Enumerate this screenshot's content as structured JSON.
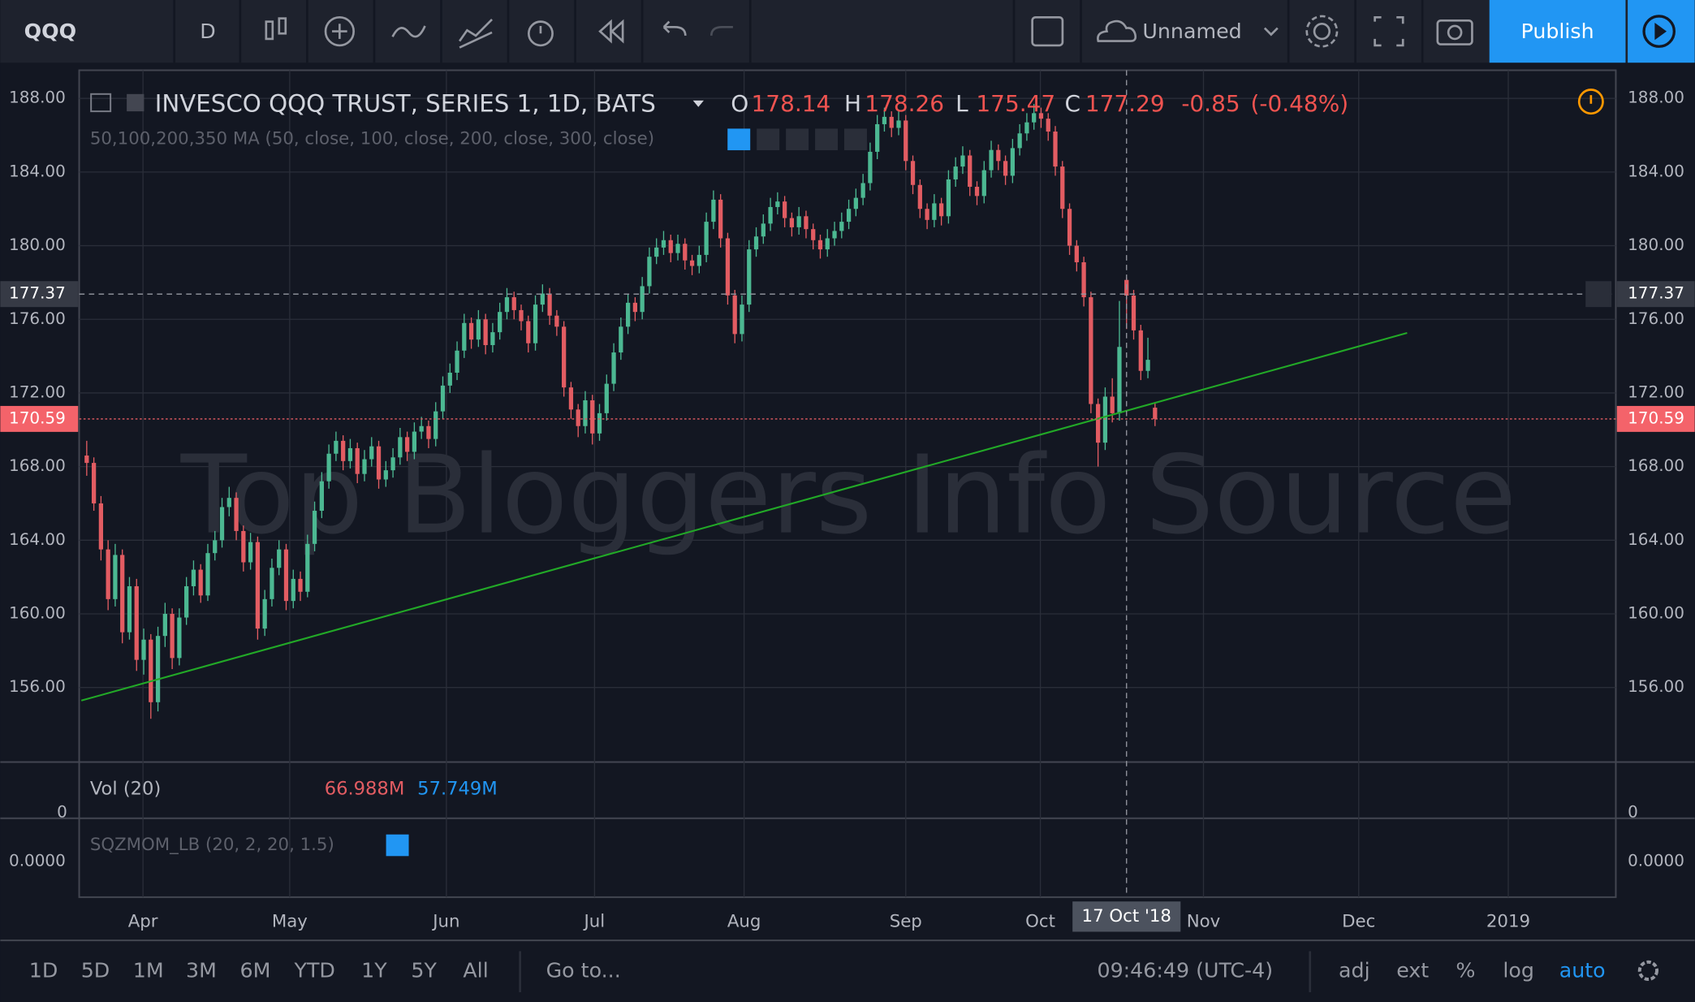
{
  "toolbar": {
    "symbol": "QQQ",
    "interval": "D",
    "layout_name": "Unnamed",
    "publish": "Publish"
  },
  "chart_data": {
    "type": "candlestick",
    "title": "INVESCO QQQ TRUST, SERIES 1, 1D, BATS",
    "ohlc_letters": [
      "O",
      "H",
      "L",
      "C"
    ],
    "hover_index": 146,
    "change": -0.85,
    "change_pct": {
      "value": -0.48,
      "label": "(-0.48%)"
    },
    "indicator": "50,100,200,350 MA (50, close, 100, close, 200, close, 300, close)",
    "watermark": "Top Bloggers Info Source",
    "up_color": "#4cb892",
    "down_color": "#e25c62",
    "grid": true,
    "ylim": [
      151.95,
      189.53
    ],
    "yticks": [
      {
        "value": 156,
        "label": "156.00"
      },
      {
        "value": 160,
        "label": "160.00"
      },
      {
        "value": 164,
        "label": "164.00"
      },
      {
        "value": 168,
        "label": "168.00"
      },
      {
        "value": 172,
        "label": "172.00"
      },
      {
        "value": 176,
        "label": "176.00"
      },
      {
        "value": 180,
        "label": "180.00"
      },
      {
        "value": 184,
        "label": "184.00"
      },
      {
        "value": 188,
        "label": "188.00"
      }
    ],
    "xlim": [
      -1.06,
      214.7
    ],
    "xticks": [
      {
        "value": 7.9,
        "label": "Apr"
      },
      {
        "value": 28.5,
        "label": "May"
      },
      {
        "value": 50.5,
        "label": "Jun"
      },
      {
        "value": 71.3,
        "label": "Jul"
      },
      {
        "value": 92.3,
        "label": "Aug"
      },
      {
        "value": 115,
        "label": "Sep"
      },
      {
        "value": 133.9,
        "label": "Oct"
      },
      {
        "value": 156.8,
        "label": "Nov"
      },
      {
        "value": 178.6,
        "label": "Dec"
      },
      {
        "value": 199.6,
        "label": "2019"
      }
    ],
    "crosshair_index": 146,
    "crosshair_date": "17 Oct '18",
    "crosshair_price": 177.37,
    "last_price": 170.59,
    "trendline": {
      "color": "#22a827",
      "x": [
        -0.76,
        185.4
      ],
      "y": [
        155.29,
        175.26
      ]
    },
    "volume": {
      "title": "Vol (20)",
      "values": [
        {
          "value": 66988000,
          "label": "66.988M"
        },
        {
          "value": 57749000,
          "label": "57.749M"
        }
      ],
      "ticks": [
        0
      ]
    },
    "squeeze": {
      "title": "SQZMOM_LB (20, 2, 20, 1.5)",
      "ticks": [
        {
          "value": 0,
          "label": "0.0000"
        }
      ]
    },
    "candles": [
      [
        168.6,
        169.4,
        167.5,
        168.2
      ],
      [
        168.2,
        168.5,
        165.6,
        166.0
      ],
      [
        166.0,
        166.4,
        162.9,
        163.5
      ],
      [
        163.5,
        164.0,
        160.2,
        160.8
      ],
      [
        160.8,
        163.8,
        160.4,
        163.2
      ],
      [
        163.2,
        163.5,
        158.4,
        159.0
      ],
      [
        159.0,
        162.0,
        158.6,
        161.5
      ],
      [
        161.5,
        161.9,
        156.9,
        157.5
      ],
      [
        157.5,
        159.2,
        156.7,
        158.6
      ],
      [
        158.6,
        158.9,
        154.3,
        155.2
      ],
      [
        155.2,
        159.3,
        154.7,
        158.8
      ],
      [
        158.8,
        160.6,
        158.2,
        160.0
      ],
      [
        160.0,
        160.3,
        157.0,
        157.6
      ],
      [
        157.6,
        160.3,
        157.2,
        159.8
      ],
      [
        159.8,
        162.0,
        159.4,
        161.5
      ],
      [
        161.5,
        162.9,
        161.0,
        162.4
      ],
      [
        162.4,
        162.7,
        160.6,
        161.0
      ],
      [
        161.0,
        163.8,
        160.7,
        163.3
      ],
      [
        163.3,
        164.5,
        162.9,
        164.0
      ],
      [
        164.0,
        166.3,
        163.6,
        165.8
      ],
      [
        165.8,
        166.9,
        165.3,
        166.3
      ],
      [
        166.3,
        166.6,
        164.0,
        164.5
      ],
      [
        164.5,
        164.8,
        162.3,
        162.8
      ],
      [
        162.8,
        164.4,
        162.4,
        163.9
      ],
      [
        163.9,
        164.2,
        158.6,
        159.2
      ],
      [
        159.2,
        161.3,
        158.8,
        160.8
      ],
      [
        160.8,
        163.0,
        160.4,
        162.5
      ],
      [
        162.5,
        164.0,
        162.1,
        163.5
      ],
      [
        163.5,
        163.8,
        160.2,
        160.7
      ],
      [
        160.7,
        162.4,
        160.3,
        161.9
      ],
      [
        161.9,
        162.3,
        160.7,
        161.2
      ],
      [
        161.2,
        164.3,
        160.9,
        163.8
      ],
      [
        163.8,
        166.1,
        163.4,
        165.6
      ],
      [
        165.6,
        167.7,
        165.2,
        167.2
      ],
      [
        167.2,
        169.2,
        166.8,
        168.7
      ],
      [
        168.7,
        169.9,
        168.3,
        169.4
      ],
      [
        169.4,
        169.7,
        167.8,
        168.3
      ],
      [
        168.3,
        169.5,
        167.9,
        169.0
      ],
      [
        169.0,
        169.3,
        167.1,
        167.6
      ],
      [
        167.6,
        168.9,
        167.2,
        168.4
      ],
      [
        168.4,
        169.6,
        168.0,
        169.1
      ],
      [
        169.1,
        169.4,
        166.8,
        167.3
      ],
      [
        167.3,
        168.3,
        166.9,
        167.8
      ],
      [
        167.8,
        169.0,
        167.4,
        168.5
      ],
      [
        168.5,
        170.1,
        168.1,
        169.6
      ],
      [
        169.6,
        169.9,
        168.3,
        168.8
      ],
      [
        168.8,
        170.4,
        168.4,
        169.9
      ],
      [
        169.9,
        170.7,
        169.5,
        170.2
      ],
      [
        170.2,
        170.5,
        169.0,
        169.5
      ],
      [
        169.5,
        171.5,
        169.1,
        171.0
      ],
      [
        171.0,
        172.9,
        170.6,
        172.4
      ],
      [
        172.4,
        173.6,
        172.0,
        173.1
      ],
      [
        173.1,
        174.8,
        172.7,
        174.3
      ],
      [
        174.3,
        176.3,
        173.9,
        175.8
      ],
      [
        175.8,
        176.1,
        174.4,
        174.9
      ],
      [
        174.9,
        176.5,
        174.5,
        176.0
      ],
      [
        176.0,
        176.3,
        174.1,
        174.6
      ],
      [
        174.6,
        175.8,
        174.2,
        175.3
      ],
      [
        175.3,
        176.9,
        174.9,
        176.4
      ],
      [
        176.4,
        177.7,
        176.0,
        177.2
      ],
      [
        177.2,
        177.5,
        176.0,
        176.5
      ],
      [
        176.5,
        176.8,
        175.4,
        175.9
      ],
      [
        175.9,
        176.2,
        174.2,
        174.7
      ],
      [
        174.7,
        177.3,
        174.3,
        176.8
      ],
      [
        176.8,
        177.9,
        176.4,
        177.4
      ],
      [
        177.4,
        177.7,
        175.7,
        176.2
      ],
      [
        176.2,
        176.5,
        175.1,
        175.6
      ],
      [
        175.6,
        175.9,
        171.8,
        172.3
      ],
      [
        172.3,
        172.6,
        170.6,
        171.1
      ],
      [
        171.1,
        171.4,
        169.6,
        170.2
      ],
      [
        170.2,
        172.1,
        169.8,
        171.6
      ],
      [
        171.6,
        171.9,
        169.2,
        169.8
      ],
      [
        169.8,
        171.4,
        169.4,
        170.9
      ],
      [
        170.9,
        173.0,
        170.5,
        172.5
      ],
      [
        172.5,
        174.7,
        172.1,
        174.2
      ],
      [
        174.2,
        176.1,
        173.8,
        175.6
      ],
      [
        175.6,
        177.4,
        175.2,
        176.9
      ],
      [
        176.9,
        177.2,
        175.9,
        176.4
      ],
      [
        176.4,
        178.3,
        176.0,
        177.8
      ],
      [
        177.8,
        179.9,
        177.4,
        179.4
      ],
      [
        179.4,
        180.4,
        179.0,
        179.9
      ],
      [
        179.9,
        180.8,
        179.5,
        180.3
      ],
      [
        180.3,
        180.6,
        179.1,
        179.6
      ],
      [
        179.6,
        180.6,
        179.2,
        180.1
      ],
      [
        180.1,
        180.4,
        178.7,
        179.2
      ],
      [
        179.2,
        179.5,
        178.4,
        178.9
      ],
      [
        178.9,
        180.0,
        178.5,
        179.5
      ],
      [
        179.5,
        181.8,
        179.1,
        181.3
      ],
      [
        181.3,
        183.0,
        180.9,
        182.5
      ],
      [
        182.5,
        182.8,
        179.9,
        180.4
      ],
      [
        180.4,
        180.7,
        176.8,
        177.3
      ],
      [
        177.3,
        177.6,
        174.7,
        175.2
      ],
      [
        175.2,
        177.3,
        174.8,
        176.8
      ],
      [
        176.8,
        180.3,
        176.4,
        179.8
      ],
      [
        179.8,
        181.0,
        179.4,
        180.5
      ],
      [
        180.5,
        181.7,
        180.1,
        181.2
      ],
      [
        181.2,
        182.6,
        180.8,
        182.1
      ],
      [
        182.1,
        182.9,
        181.7,
        182.4
      ],
      [
        182.4,
        182.7,
        181.0,
        181.5
      ],
      [
        181.5,
        181.8,
        180.5,
        181.0
      ],
      [
        181.0,
        182.1,
        180.6,
        181.6
      ],
      [
        181.6,
        181.9,
        180.4,
        180.9
      ],
      [
        180.9,
        181.2,
        179.8,
        180.3
      ],
      [
        180.3,
        180.6,
        179.3,
        179.8
      ],
      [
        179.8,
        180.9,
        179.4,
        180.4
      ],
      [
        180.4,
        181.3,
        180.0,
        180.8
      ],
      [
        180.8,
        181.8,
        180.4,
        181.3
      ],
      [
        181.3,
        182.5,
        180.9,
        182.0
      ],
      [
        182.0,
        183.1,
        181.6,
        182.6
      ],
      [
        182.6,
        183.9,
        182.2,
        183.4
      ],
      [
        183.4,
        185.6,
        183.0,
        185.1
      ],
      [
        185.1,
        187.1,
        184.7,
        186.6
      ],
      [
        186.6,
        187.5,
        186.2,
        187.0
      ],
      [
        187.0,
        187.3,
        185.9,
        186.4
      ],
      [
        186.4,
        187.3,
        186.0,
        186.8
      ],
      [
        186.8,
        187.1,
        184.1,
        184.6
      ],
      [
        184.6,
        184.9,
        182.8,
        183.3
      ],
      [
        183.3,
        183.6,
        181.5,
        182.0
      ],
      [
        182.0,
        182.3,
        180.9,
        181.4
      ],
      [
        181.4,
        182.8,
        181.0,
        182.3
      ],
      [
        182.3,
        182.6,
        181.1,
        181.6
      ],
      [
        181.6,
        184.1,
        181.2,
        183.6
      ],
      [
        183.6,
        184.8,
        183.2,
        184.3
      ],
      [
        184.3,
        185.4,
        183.9,
        184.9
      ],
      [
        184.9,
        185.2,
        182.7,
        183.2
      ],
      [
        183.2,
        183.5,
        182.2,
        182.7
      ],
      [
        182.7,
        184.6,
        182.3,
        184.1
      ],
      [
        184.1,
        185.7,
        183.7,
        185.2
      ],
      [
        185.2,
        185.5,
        184.1,
        184.6
      ],
      [
        184.6,
        184.9,
        183.3,
        183.8
      ],
      [
        183.8,
        185.8,
        183.4,
        185.3
      ],
      [
        185.3,
        186.6,
        184.9,
        186.1
      ],
      [
        186.1,
        187.2,
        185.7,
        186.7
      ],
      [
        186.7,
        187.7,
        186.3,
        187.2
      ],
      [
        187.2,
        187.5,
        186.4,
        186.9
      ],
      [
        186.9,
        187.2,
        185.7,
        186.2
      ],
      [
        186.2,
        186.5,
        183.8,
        184.3
      ],
      [
        184.3,
        184.6,
        181.5,
        182.0
      ],
      [
        182.0,
        182.3,
        179.5,
        180.0
      ],
      [
        180.0,
        180.3,
        178.6,
        179.1
      ],
      [
        179.1,
        179.4,
        176.7,
        177.2
      ],
      [
        177.2,
        177.5,
        170.9,
        171.4
      ],
      [
        171.4,
        171.7,
        168.0,
        169.3
      ],
      [
        169.3,
        172.3,
        168.9,
        171.8
      ],
      [
        171.8,
        172.8,
        170.4,
        170.9
      ],
      [
        170.9,
        177.0,
        170.5,
        174.5
      ],
      [
        178.14,
        178.26,
        175.47,
        177.29
      ],
      [
        177.29,
        177.6,
        174.9,
        175.4
      ],
      [
        175.4,
        175.7,
        172.7,
        173.2
      ],
      [
        173.2,
        175.0,
        172.8,
        173.8
      ],
      [
        171.2,
        171.5,
        170.2,
        170.59
      ]
    ]
  },
  "bottom_bar": {
    "ranges": [
      "1D",
      "5D",
      "1M",
      "3M",
      "6M",
      "YTD",
      "1Y",
      "5Y",
      "All"
    ],
    "goto": "Go to...",
    "time": "09:46:49 (UTC-4)",
    "options": [
      "adj",
      "ext",
      "%",
      "log",
      "auto"
    ]
  }
}
